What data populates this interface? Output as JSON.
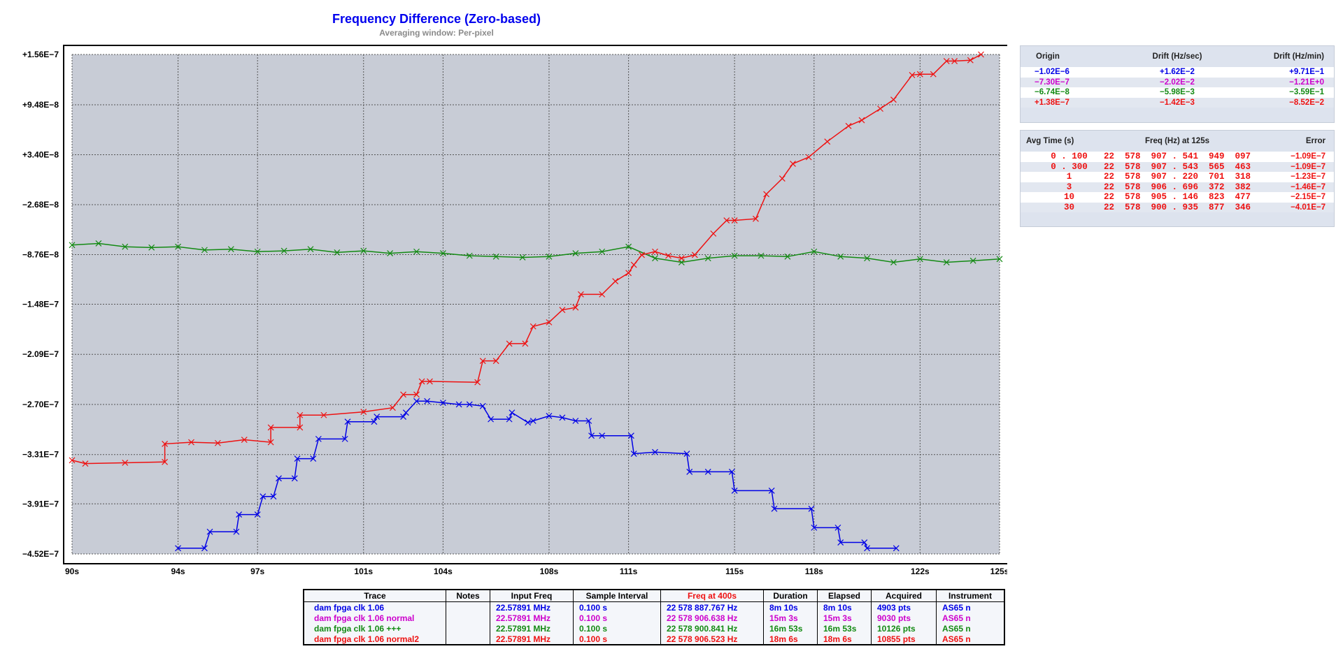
{
  "chart_data": {
    "type": "scatter",
    "title": "Frequency Difference (Zero-based)",
    "subtitle": "Averaging window: Per-pixel",
    "xlabel": "",
    "ylabel": "",
    "xlim": [
      90,
      125
    ],
    "ylim": [
      -4.52e-07,
      1.56e-07
    ],
    "grid": true,
    "y_tick_values": [
      1.56e-07,
      9.48e-08,
      3.4e-08,
      -2.68e-08,
      -8.76e-08,
      -1.48e-07,
      -2.09e-07,
      -2.7e-07,
      -3.31e-07,
      -3.91e-07,
      -4.52e-07
    ],
    "y_tick_labels": [
      "+1.56E−7",
      "+9.48E−8",
      "+3.40E−8",
      "−2.68E−8",
      "−8.76E−8",
      "−1.48E−7",
      "−2.09E−7",
      "−2.70E−7",
      "−3.31E−7",
      "−3.91E−7",
      "−4.52E−7"
    ],
    "x_tick_values": [
      90,
      94,
      97,
      101,
      104,
      108,
      111,
      115,
      118,
      122,
      125
    ],
    "x_tick_labels": [
      "90s",
      "94s",
      "97s",
      "101s",
      "104s",
      "108s",
      "111s",
      "115s",
      "118s",
      "122s",
      "125s"
    ],
    "series": [
      {
        "name": "dam fpga clk 1.06",
        "color": "#0000e6",
        "x": [
          94.0,
          95.0,
          95.2,
          96.2,
          96.3,
          97.0,
          97.2,
          97.6,
          97.8,
          98.4,
          98.5,
          99.1,
          99.3,
          100.3,
          100.4,
          101.4,
          101.5,
          102.5,
          102.6,
          103.0,
          103.4,
          104.0,
          104.6,
          105.0,
          105.5,
          105.8,
          106.5,
          106.6,
          107.2,
          107.4,
          108.0,
          108.5,
          109.0,
          109.5,
          109.6,
          110.0,
          111.1,
          111.2,
          112.0,
          113.2,
          113.3,
          114.0,
          114.9,
          115.0,
          116.4,
          116.5,
          117.9,
          118.0,
          118.9,
          119.0,
          119.9,
          120.0,
          121.1
        ],
        "y": [
          -4.45e-07,
          -4.45e-07,
          -4.25e-07,
          -4.25e-07,
          -4.04e-07,
          -4.04e-07,
          -3.82e-07,
          -3.82e-07,
          -3.6e-07,
          -3.6e-07,
          -3.36e-07,
          -3.36e-07,
          -3.12e-07,
          -3.12e-07,
          -2.91e-07,
          -2.91e-07,
          -2.85e-07,
          -2.85e-07,
          -2.8e-07,
          -2.66e-07,
          -2.66e-07,
          -2.68e-07,
          -2.7e-07,
          -2.7e-07,
          -2.72e-07,
          -2.88e-07,
          -2.88e-07,
          -2.8e-07,
          -2.92e-07,
          -2.9e-07,
          -2.84e-07,
          -2.86e-07,
          -2.9e-07,
          -2.9e-07,
          -3.08e-07,
          -3.08e-07,
          -3.08e-07,
          -3.3e-07,
          -3.28e-07,
          -3.3e-07,
          -3.52e-07,
          -3.52e-07,
          -3.52e-07,
          -3.75e-07,
          -3.75e-07,
          -3.97e-07,
          -3.97e-07,
          -4.2e-07,
          -4.2e-07,
          -4.38e-07,
          -4.38e-07,
          -4.45e-07,
          -4.45e-07
        ]
      },
      {
        "name": "dam fpga clk 1.06 +++",
        "color": "#138a13",
        "x": [
          90.0,
          91.0,
          92.0,
          93.0,
          94.0,
          95.0,
          96.0,
          97.0,
          98.0,
          99.0,
          100.0,
          101.0,
          102.0,
          103.0,
          104.0,
          105.0,
          106.0,
          107.0,
          108.0,
          109.0,
          110.0,
          111.0,
          112.0,
          113.0,
          114.0,
          115.0,
          116.0,
          117.0,
          118.0,
          119.0,
          120.0,
          121.0,
          122.0,
          123.0,
          124.0,
          125.0
        ],
        "y": [
          -7.6e-08,
          -7.4e-08,
          -7.8e-08,
          -7.9e-08,
          -7.8e-08,
          -8.2e-08,
          -8.1e-08,
          -8.4e-08,
          -8.3e-08,
          -8.1e-08,
          -8.5e-08,
          -8.3e-08,
          -8.6e-08,
          -8.4e-08,
          -8.6e-08,
          -8.9e-08,
          -9e-08,
          -9.1e-08,
          -9e-08,
          -8.6e-08,
          -8.4e-08,
          -7.8e-08,
          -9.2e-08,
          -9.7e-08,
          -9.2e-08,
          -8.9e-08,
          -8.9e-08,
          -9e-08,
          -8.4e-08,
          -9e-08,
          -9.2e-08,
          -9.7e-08,
          -9.3e-08,
          -9.7e-08,
          -9.5e-08,
          -9.3e-08
        ]
      },
      {
        "name": "dam fpga clk 1.06 normal2",
        "color": "#ee1111",
        "x": [
          90.0,
          90.5,
          92.0,
          93.5,
          93.5,
          94.5,
          95.5,
          96.5,
          97.5,
          97.5,
          98.6,
          98.6,
          99.5,
          101.0,
          102.1,
          102.5,
          103.0,
          103.2,
          103.5,
          105.3,
          105.5,
          106.0,
          106.5,
          107.1,
          107.4,
          108.0,
          108.5,
          109.0,
          109.2,
          110.0,
          110.5,
          111.0,
          111.2,
          111.5,
          112.0,
          112.5,
          113.0,
          113.5,
          114.2,
          114.7,
          115.0,
          115.8,
          116.2,
          116.8,
          117.2,
          117.8,
          118.5,
          119.3,
          119.8,
          120.5,
          121.0,
          121.7,
          122.0,
          122.5,
          123.0,
          123.3,
          123.9,
          124.3
        ],
        "y": [
          -3.38e-07,
          -3.42e-07,
          -3.41e-07,
          -3.4e-07,
          -3.18e-07,
          -3.16e-07,
          -3.17e-07,
          -3.13e-07,
          -3.16e-07,
          -2.98e-07,
          -2.98e-07,
          -2.83e-07,
          -2.83e-07,
          -2.79e-07,
          -2.74e-07,
          -2.58e-07,
          -2.58e-07,
          -2.42e-07,
          -2.42e-07,
          -2.43e-07,
          -2.17e-07,
          -2.17e-07,
          -1.96e-07,
          -1.96e-07,
          -1.75e-07,
          -1.7e-07,
          -1.55e-07,
          -1.52e-07,
          -1.36e-07,
          -1.36e-07,
          -1.2e-07,
          -1.1e-07,
          -1e-07,
          -8.8e-08,
          -8.4e-08,
          -8.9e-08,
          -9.2e-08,
          -8.8e-08,
          -6.2e-08,
          -4.6e-08,
          -4.6e-08,
          -4.4e-08,
          -1.4e-08,
          5e-09,
          2.3e-08,
          3.1e-08,
          5e-08,
          6.9e-08,
          7.6e-08,
          9e-08,
          1.01e-07,
          1.31e-07,
          1.32e-07,
          1.32e-07,
          1.48e-07,
          1.48e-07,
          1.49e-07,
          1.56e-07
        ]
      }
    ]
  },
  "drift_panel": {
    "headers": [
      "Origin",
      "Drift (Hz/sec)",
      "Drift (Hz/min)"
    ],
    "rows": [
      {
        "origin": "−1.02E−6",
        "drift_sec": "+1.62E−2",
        "drift_min": "+9.71E−1",
        "color": "#0000e6"
      },
      {
        "origin": "−7.30E−7",
        "drift_sec": "−2.02E−2",
        "drift_min": "−1.21E+0",
        "color": "#cc00cc"
      },
      {
        "origin": "−6.74E−8",
        "drift_sec": "−5.98E−3",
        "drift_min": "−3.59E−1",
        "color": "#138a13"
      },
      {
        "origin": "+1.38E−7",
        "drift_sec": "−1.42E−3",
        "drift_min": "−8.52E−2",
        "color": "#ee1111"
      }
    ]
  },
  "avg_panel": {
    "headers": [
      "Avg Time (s)",
      "Freq (Hz) at 125s",
      "Error"
    ],
    "color": "#ee1111",
    "rows": [
      {
        "avg": "0 . 100",
        "freq": "22  578  907 . 541  949  097",
        "error": "−1.09E−7"
      },
      {
        "avg": "0 . 300",
        "freq": "22  578  907 . 543  565  463",
        "error": "−1.09E−7"
      },
      {
        "avg": "1",
        "freq": "22  578  907 . 220  701  318",
        "error": "−1.23E−7"
      },
      {
        "avg": "3",
        "freq": "22  578  906 . 696  372  382",
        "error": "−1.46E−7"
      },
      {
        "avg": "10",
        "freq": "22  578  905 . 146  823  477",
        "error": "−2.15E−7"
      },
      {
        "avg": "30",
        "freq": "22  578  900 . 935  877  346",
        "error": "−4.01E−7"
      }
    ]
  },
  "legend": {
    "headers": [
      "Trace",
      "Notes",
      "Input Freq",
      "Sample Interval",
      "Freq at 400s",
      "Duration",
      "Elapsed",
      "Acquired",
      "Instrument"
    ],
    "freq_header_color": "#ee1111",
    "rows": [
      {
        "trace": "dam fpga clk 1.06",
        "notes": "",
        "input": "22.57891 MHz",
        "interval": "0.100 s",
        "freq400": "22 578 887.767 Hz",
        "duration": "8m 10s",
        "elapsed": "8m 10s",
        "acquired": "4903 pts",
        "instrument": "AS65 n",
        "color": "#0000e6"
      },
      {
        "trace": "dam fpga clk 1.06 normal",
        "notes": "",
        "input": "22.57891 MHz",
        "interval": "0.100 s",
        "freq400": "22 578 906.638 Hz",
        "duration": "15m 3s",
        "elapsed": "15m 3s",
        "acquired": "9030 pts",
        "instrument": "AS65 n",
        "color": "#cc00cc"
      },
      {
        "trace": "dam fpga clk 1.06 +++",
        "notes": "",
        "input": "22.57891 MHz",
        "interval": "0.100 s",
        "freq400": "22 578 900.841 Hz",
        "duration": "16m 53s",
        "elapsed": "16m 53s",
        "acquired": "10126 pts",
        "instrument": "AS65 n",
        "color": "#138a13"
      },
      {
        "trace": "dam fpga clk 1.06 normal2",
        "notes": "",
        "input": "22.57891 MHz",
        "interval": "0.100 s",
        "freq400": "22 578 906.523 Hz",
        "duration": "18m 6s",
        "elapsed": "18m 6s",
        "acquired": "10855 pts",
        "instrument": "AS65 n",
        "color": "#ee1111"
      }
    ]
  }
}
